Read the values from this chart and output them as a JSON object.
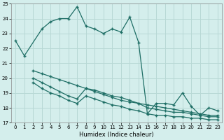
{
  "xlabel": "Humidex (Indice chaleur)",
  "bg_color": "#d4eeec",
  "grid_color": "#b8d8d5",
  "line_color": "#1e6e65",
  "xlim": [
    -0.5,
    23.5
  ],
  "ylim": [
    17,
    25
  ],
  "yticks": [
    17,
    18,
    19,
    20,
    21,
    22,
    23,
    24,
    25
  ],
  "xticks": [
    0,
    1,
    2,
    3,
    4,
    5,
    6,
    7,
    8,
    9,
    10,
    11,
    12,
    13,
    14,
    15,
    16,
    17,
    18,
    19,
    20,
    21,
    22,
    23
  ],
  "line1_x": [
    0,
    1,
    3,
    4,
    5,
    6,
    7,
    8,
    9,
    10,
    11,
    12,
    13,
    14,
    15,
    16,
    17,
    18,
    19,
    20,
    21,
    22,
    23
  ],
  "line1_y": [
    22.5,
    21.5,
    23.3,
    23.8,
    24.0,
    24.0,
    24.8,
    23.5,
    23.3,
    23.0,
    23.3,
    23.1,
    24.1,
    22.4,
    17.6,
    18.3,
    18.3,
    18.2,
    19.0,
    18.1,
    17.5,
    18.0,
    17.8
  ],
  "line2_x": [
    2,
    3,
    4,
    5,
    6,
    7,
    8,
    9,
    10,
    11,
    12,
    13,
    14,
    15,
    16,
    17,
    18,
    19,
    20,
    21,
    22,
    23
  ],
  "line2_y": [
    20.5,
    20.3,
    20.1,
    19.9,
    19.7,
    19.5,
    19.3,
    19.2,
    19.0,
    18.8,
    18.7,
    18.5,
    18.3,
    18.2,
    18.1,
    18.0,
    17.9,
    17.8,
    17.7,
    17.6,
    17.5,
    17.5
  ],
  "line3_x": [
    2,
    3,
    4,
    5,
    6,
    7,
    8,
    9,
    10,
    11,
    12,
    13,
    14,
    15,
    16,
    17,
    18,
    19,
    20,
    21,
    22,
    23
  ],
  "line3_y": [
    20.0,
    19.7,
    19.4,
    19.1,
    18.8,
    18.6,
    19.3,
    19.1,
    18.9,
    18.7,
    18.5,
    18.4,
    18.3,
    18.0,
    17.9,
    17.8,
    17.7,
    17.7,
    17.6,
    17.5,
    17.4,
    17.4
  ],
  "line4_x": [
    2,
    3,
    4,
    5,
    6,
    7,
    8,
    9,
    10,
    11,
    12,
    13,
    14,
    15,
    16,
    17,
    18,
    19,
    20,
    21,
    22,
    23
  ],
  "line4_y": [
    19.7,
    19.3,
    19.0,
    18.8,
    18.5,
    18.3,
    18.8,
    18.6,
    18.4,
    18.2,
    18.1,
    17.9,
    17.8,
    17.6,
    17.5,
    17.5,
    17.4,
    17.4,
    17.3,
    17.3,
    17.2,
    17.2
  ]
}
